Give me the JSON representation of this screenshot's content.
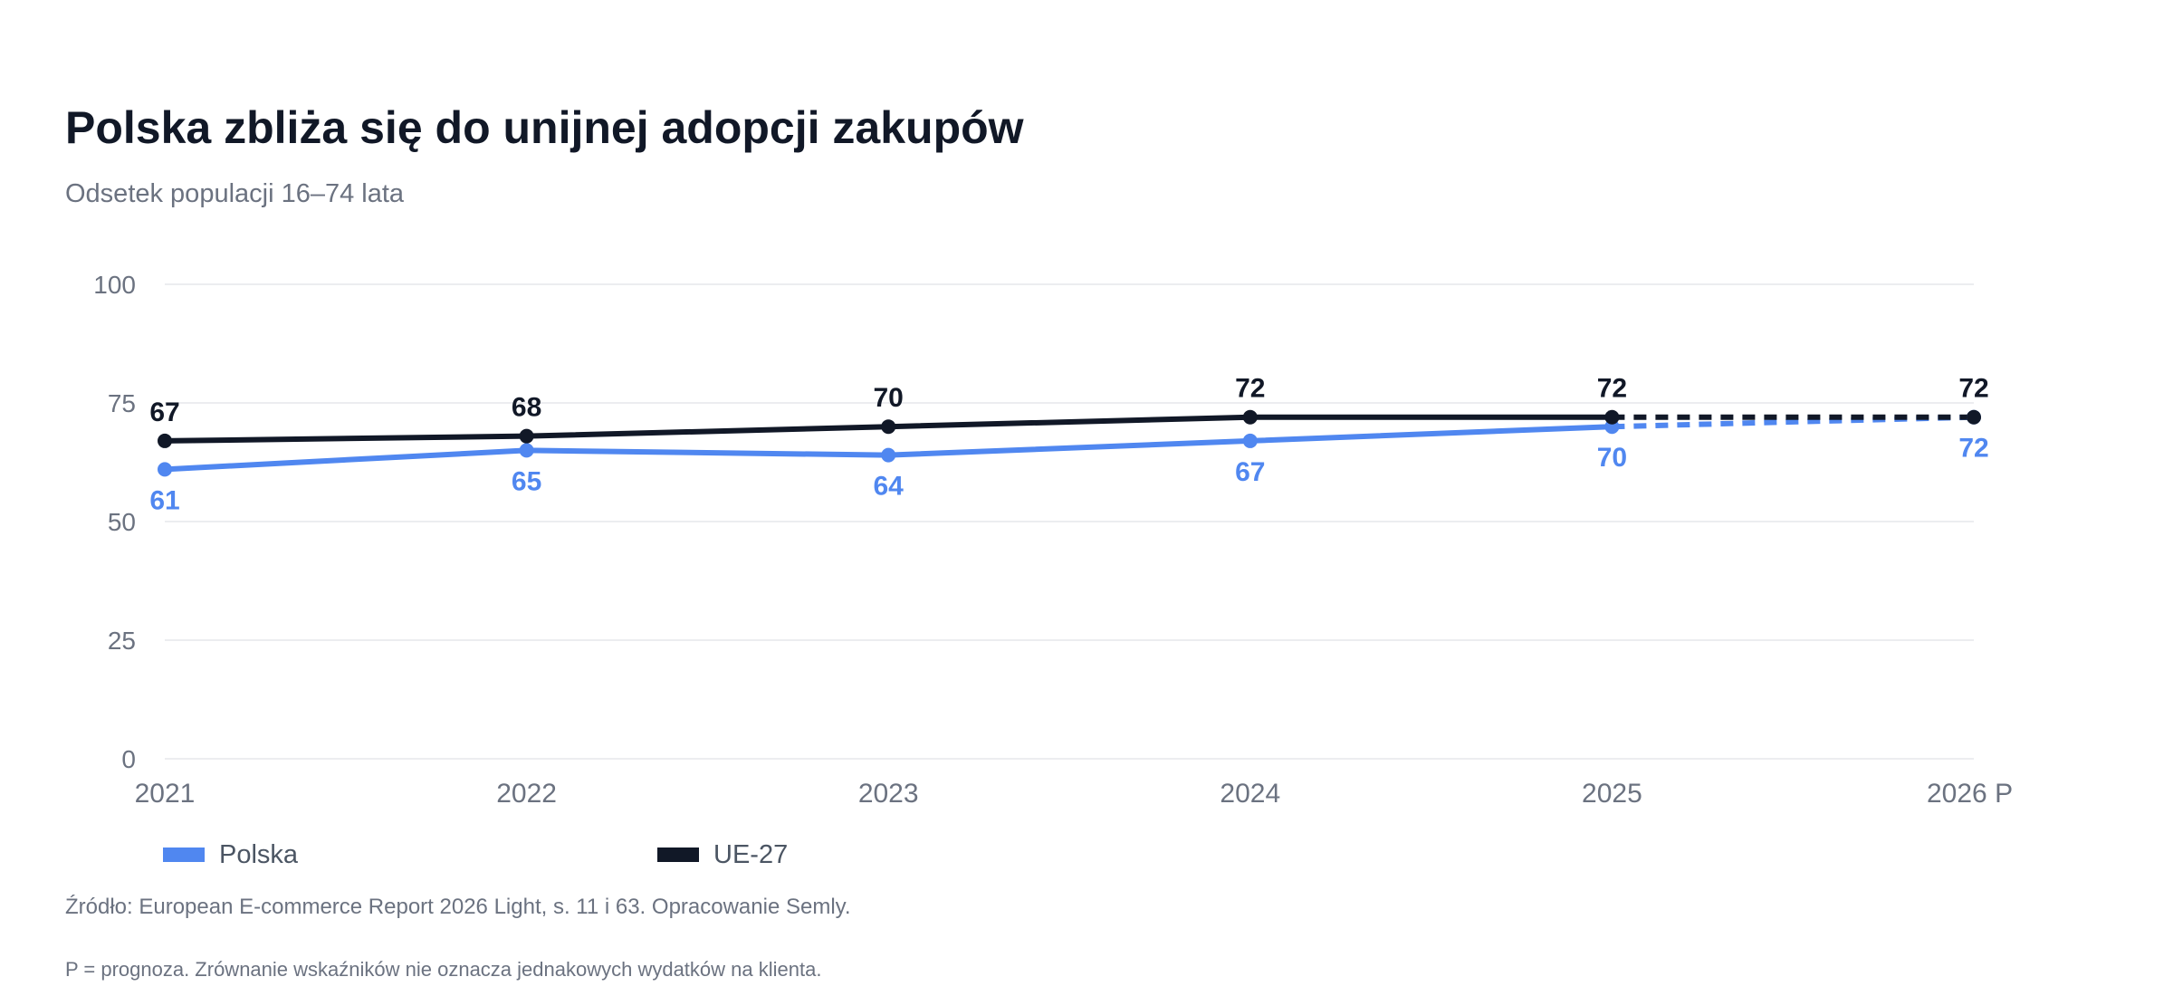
{
  "chart_data": {
    "type": "line",
    "title": "Polska zbliża się do unijnej adopcji zakupów",
    "subtitle": "Odsetek populacji 16–74 lata",
    "categories": [
      "2021",
      "2022",
      "2023",
      "2024",
      "2025",
      "2026 P"
    ],
    "ylim": [
      0,
      100
    ],
    "yticks": [
      "0",
      "25",
      "50",
      "75",
      "100"
    ],
    "grid": true,
    "legend_position": "bottom-left",
    "forecast_from_index": 4,
    "series": [
      {
        "name": "Polska",
        "color": "#5087f0",
        "values": [
          61,
          65,
          64,
          67,
          70,
          72
        ],
        "labels": [
          "61",
          "65",
          "64",
          "67",
          "70",
          "72"
        ],
        "label_position": "below"
      },
      {
        "name": "UE-27",
        "color": "#111827",
        "values": [
          67,
          68,
          70,
          72,
          72,
          72
        ],
        "labels": [
          "67",
          "68",
          "70",
          "72",
          "72",
          "72"
        ],
        "label_position": "above"
      }
    ]
  },
  "legend": {
    "items": [
      {
        "label": "Polska",
        "color": "#5087f0"
      },
      {
        "label": "UE-27",
        "color": "#111827"
      }
    ]
  },
  "notes": {
    "source": "Źródło: European E-commerce Report 2026 Light, s. 11 i 63. Opracowanie Semly.",
    "footnote": "P = prognoza. Zrównanie wskaźników nie oznacza jednakowych wydatków na klienta."
  }
}
